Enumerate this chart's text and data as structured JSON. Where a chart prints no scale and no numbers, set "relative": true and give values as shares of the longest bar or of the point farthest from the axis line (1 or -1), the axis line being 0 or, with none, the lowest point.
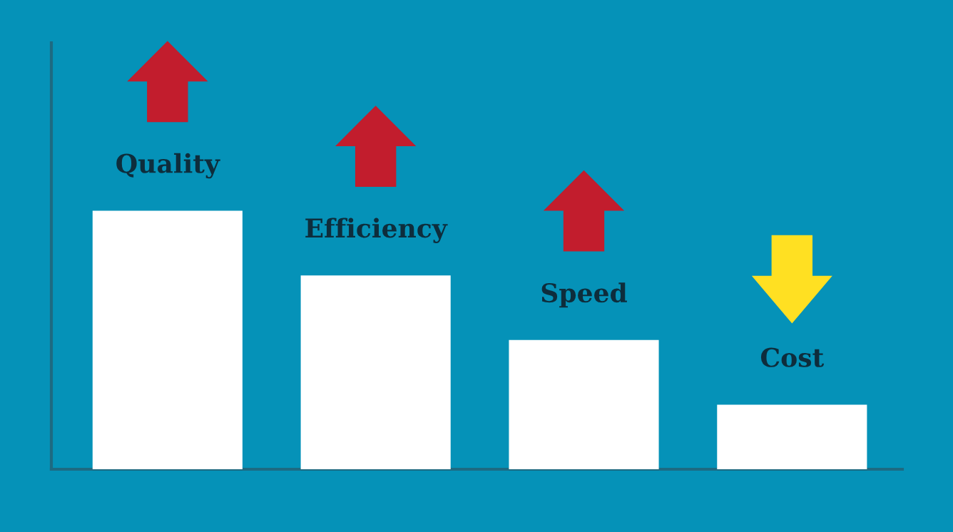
{
  "chart_data": {
    "type": "bar",
    "relative": true,
    "categories": [
      "Quality",
      "Efficiency",
      "Speed",
      "Cost"
    ],
    "values": [
      1,
      0.75,
      0.5,
      0.25
    ],
    "color": "#ffffff"
  }
}
